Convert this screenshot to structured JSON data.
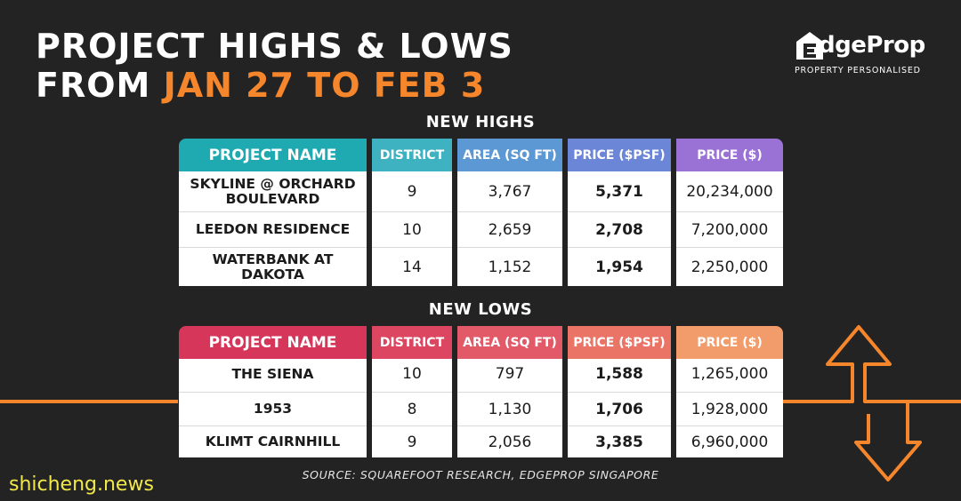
{
  "title": {
    "line1": "PROJECT HIGHS & LOWS",
    "line2_prefix": "FROM ",
    "line2_highlight": "JAN 27 TO FEB 3"
  },
  "logo": {
    "word": "dgeProp",
    "tagline": "PROPERTY PERSONALISED"
  },
  "headers": [
    "PROJECT NAME",
    "DISTRICT",
    "AREA (SQ FT)",
    "PRICE ($PSF)",
    "PRICE ($)"
  ],
  "highs": {
    "title": "NEW HIGHS",
    "colors": [
      "#1eaab0",
      "#3fb2c2",
      "#5c99d4",
      "#6b86d6",
      "#9a72d6"
    ],
    "rows": [
      {
        "name": "SKYLINE @ ORCHARD BOULEVARD",
        "district": "9",
        "area": "3,767",
        "psf": "5,371",
        "price": "20,234,000"
      },
      {
        "name": "LEEDON RESIDENCE",
        "district": "10",
        "area": "2,659",
        "psf": "2,708",
        "price": "7,200,000"
      },
      {
        "name": "WATERBANK AT DAKOTA",
        "district": "14",
        "area": "1,152",
        "psf": "1,954",
        "price": "2,250,000"
      }
    ]
  },
  "lows": {
    "title": "NEW LOWS",
    "colors": [
      "#d6365a",
      "#dc4660",
      "#e25a67",
      "#ea7466",
      "#f29c6b"
    ],
    "rows": [
      {
        "name": "THE SIENA",
        "district": "10",
        "area": "797",
        "psf": "1,588",
        "price": "1,265,000"
      },
      {
        "name": "1953",
        "district": "8",
        "area": "1,130",
        "psf": "1,706",
        "price": "1,928,000"
      },
      {
        "name": "KLIMT CAIRNHILL",
        "district": "9",
        "area": "2,056",
        "psf": "3,385",
        "price": "6,960,000"
      }
    ]
  },
  "source": "SOURCE: SQUAREFOOT RESEARCH, EDGEPROP SINGAPORE",
  "watermark": "shicheng.news",
  "accent_color": "#f6862b"
}
